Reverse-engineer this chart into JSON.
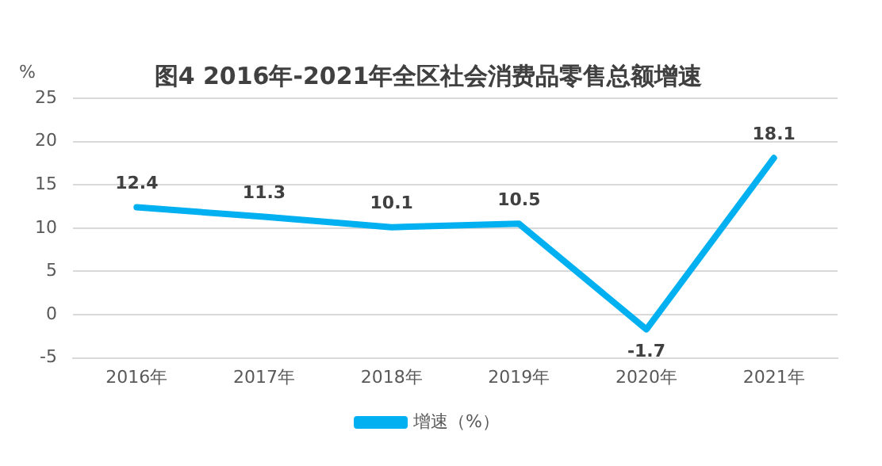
{
  "chart_data": {
    "type": "line",
    "title": "图4 2016年-2021年全区社会消费品零售总额增速",
    "ylabel": "%",
    "categories": [
      "2016年",
      "2017年",
      "2018年",
      "2019年",
      "2020年",
      "2021年"
    ],
    "series": [
      {
        "name": "增速（%）",
        "color": "#00b0f0",
        "values": [
          12.4,
          11.3,
          10.1,
          10.5,
          -1.7,
          18.1
        ]
      }
    ],
    "ylim": [
      -5,
      25
    ],
    "yticks": [
      -5,
      0,
      5,
      10,
      15,
      20,
      25
    ],
    "grid": "y",
    "legend": "bottom",
    "data_labels": true,
    "marker": "none",
    "line_style": "solid"
  }
}
